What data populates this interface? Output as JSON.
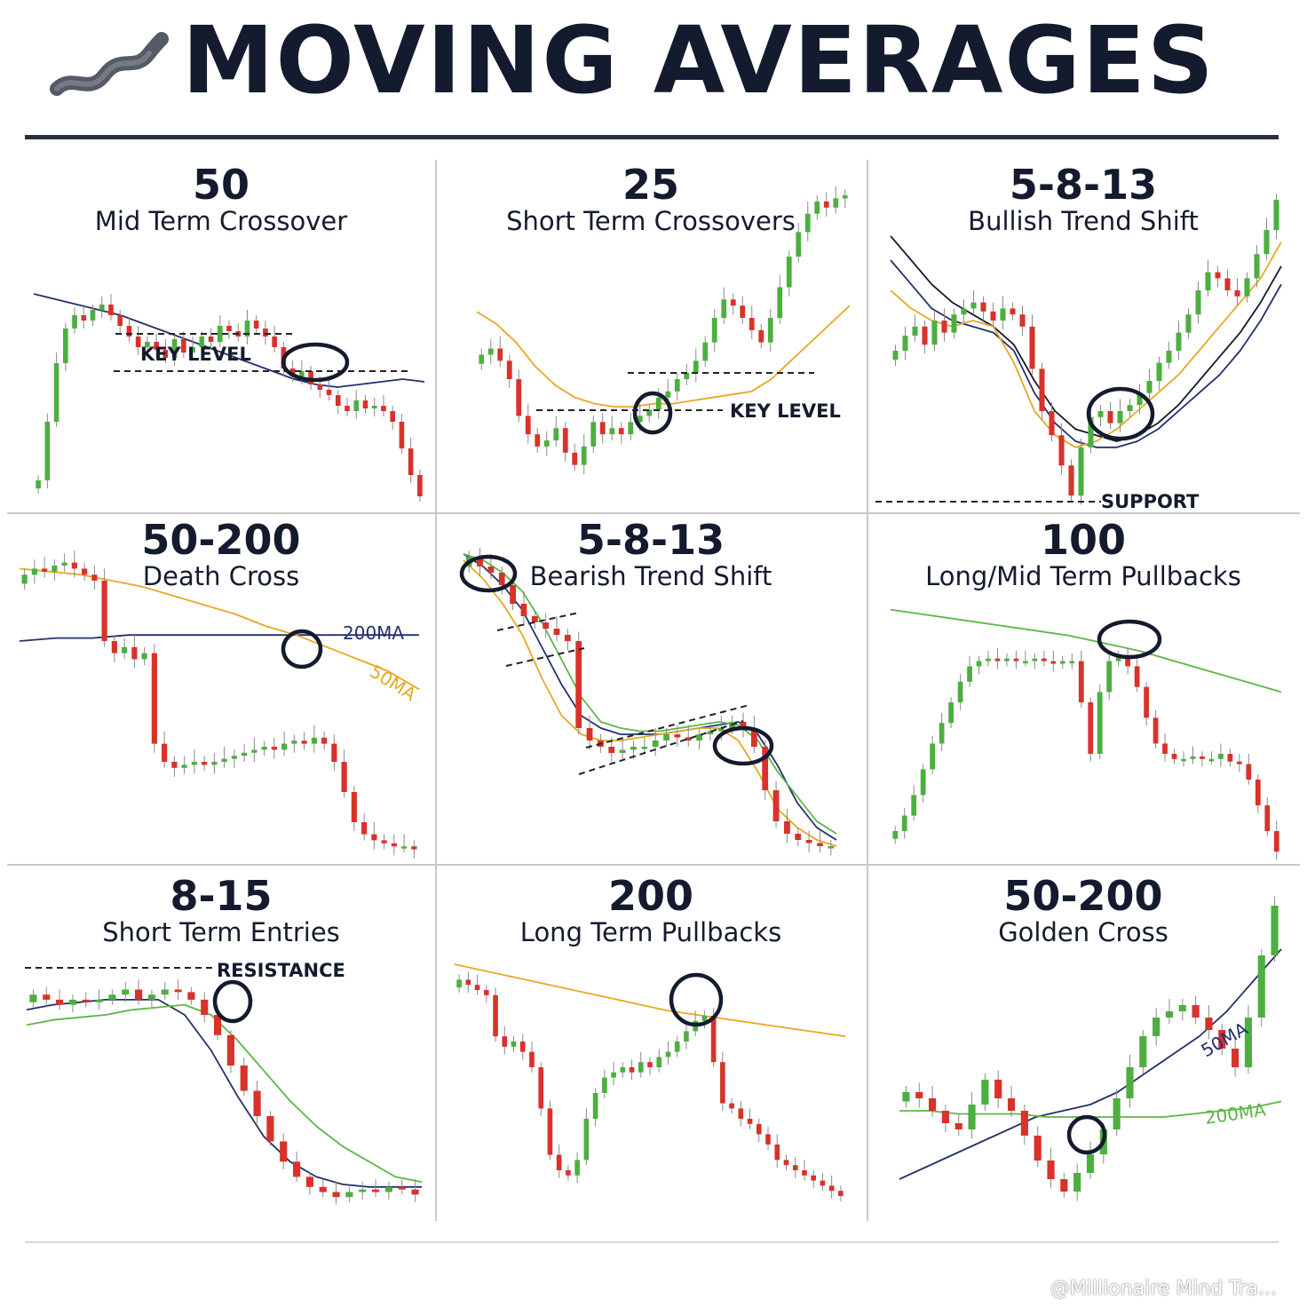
{
  "header": {
    "title": "MOVING AVERAGES",
    "logo_icon": "wave-icon"
  },
  "watermark": "@Millionaire Mind Tra...",
  "colors": {
    "bull": "#4caf3f",
    "bear": "#d8322a",
    "navy": "#23306b",
    "orange": "#e8a823",
    "green": "#5cb648",
    "ink": "#151b2e"
  },
  "chart_data": [
    {
      "type": "candlestick",
      "title": "50",
      "subtitle": "Mid Term Crossover",
      "moving_averages": [
        "navy"
      ],
      "annotations": [
        "KEY LEVEL"
      ],
      "highlight": "crossover",
      "ylim": [
        0,
        100
      ],
      "close": [
        8,
        30,
        52,
        65,
        70,
        68,
        72,
        74,
        70,
        66,
        62,
        58,
        60,
        57,
        54,
        61,
        56,
        58,
        62,
        60,
        66,
        64,
        62,
        68,
        65,
        62,
        58,
        50,
        47,
        49,
        44,
        42,
        40,
        36,
        34,
        38,
        35,
        36,
        34,
        30,
        20,
        10,
        2
      ],
      "ma_series": [
        {
          "color": "navy",
          "values": [
            78,
            76,
            74,
            72,
            70,
            67,
            64,
            61,
            58,
            55,
            52,
            49,
            46,
            44,
            43,
            44,
            45,
            46,
            45
          ]
        }
      ]
    },
    {
      "type": "candlestick",
      "title": "25",
      "subtitle": "Short Term Crossovers",
      "moving_averages": [
        "orange"
      ],
      "annotations": [
        "KEY LEVEL"
      ],
      "highlight": "crossover",
      "ylim": [
        0,
        100
      ],
      "close": [
        48,
        50,
        46,
        40,
        28,
        22,
        18,
        20,
        24,
        16,
        12,
        18,
        26,
        22,
        24,
        22,
        26,
        28,
        30,
        34,
        36,
        40,
        42,
        46,
        52,
        60,
        66,
        64,
        60,
        56,
        52,
        60,
        70,
        80,
        88,
        94,
        98,
        96,
        99,
        100
      ],
      "ma_series": [
        {
          "color": "orange",
          "values": [
            62,
            58,
            52,
            44,
            38,
            34,
            32,
            31,
            31,
            32,
            32,
            33,
            34,
            35,
            36,
            40,
            46,
            52,
            58,
            64
          ]
        }
      ]
    },
    {
      "type": "candlestick",
      "title": "5-8-13",
      "subtitle": "Bullish Trend Shift",
      "moving_averages": [
        "navy",
        "black",
        "orange"
      ],
      "annotations": [
        "SUPPORT"
      ],
      "highlight": "crossover",
      "ylim": [
        0,
        100
      ],
      "close": [
        50,
        55,
        58,
        52,
        60,
        56,
        62,
        64,
        66,
        63,
        60,
        64,
        62,
        58,
        44,
        30,
        22,
        12,
        2,
        18,
        28,
        30,
        26,
        30,
        32,
        36,
        40,
        46,
        50,
        56,
        62,
        70,
        76,
        74,
        70,
        68,
        74,
        82,
        90,
        100
      ],
      "ma_series": [
        {
          "color": "black",
          "values": [
            88,
            80,
            72,
            66,
            62,
            58,
            52,
            40,
            30,
            24,
            22,
            20,
            22,
            26,
            32,
            40,
            48,
            56,
            66,
            78
          ]
        },
        {
          "color": "navy",
          "values": [
            80,
            72,
            64,
            60,
            58,
            56,
            50,
            36,
            26,
            20,
            18,
            18,
            20,
            24,
            30,
            36,
            42,
            50,
            60,
            72
          ]
        },
        {
          "color": "orange",
          "values": [
            70,
            64,
            60,
            58,
            60,
            58,
            46,
            30,
            22,
            18,
            20,
            24,
            30,
            36,
            42,
            50,
            58,
            66,
            74,
            86
          ]
        }
      ]
    },
    {
      "type": "candlestick",
      "title": "50-200",
      "subtitle": "Death Cross",
      "moving_averages": [
        "200MA",
        "50MA"
      ],
      "annotations": [
        "200MA",
        "50MA"
      ],
      "highlight": "death-cross",
      "ylim": [
        0,
        100
      ],
      "close": [
        92,
        94,
        93,
        95,
        96,
        94,
        92,
        90,
        70,
        66,
        68,
        64,
        66,
        36,
        30,
        28,
        29,
        30,
        29,
        30,
        31,
        32,
        33,
        34,
        35,
        34,
        36,
        37,
        36,
        38,
        36,
        30,
        20,
        10,
        6,
        4,
        3,
        2,
        2,
        1
      ],
      "ma_series": [
        {
          "color": "navy",
          "values": [
            70,
            71,
            71,
            72,
            72,
            72,
            72,
            72,
            72,
            72,
            72,
            72
          ]
        },
        {
          "color": "orange",
          "values": [
            94,
            93,
            92,
            90,
            88,
            85,
            82,
            79,
            75,
            72,
            68,
            64,
            60,
            54
          ]
        }
      ]
    },
    {
      "type": "candlestick",
      "title": "5-8-13",
      "subtitle": "Bearish Trend Shift",
      "moving_averages": [
        "navy",
        "orange",
        "green"
      ],
      "annotations": [
        "trendlines"
      ],
      "highlight": "crossover",
      "ylim": [
        0,
        100
      ],
      "close": [
        95,
        92,
        90,
        86,
        80,
        76,
        74,
        72,
        70,
        68,
        40,
        36,
        34,
        32,
        33,
        34,
        34,
        36,
        38,
        37,
        36,
        38,
        39,
        40,
        42,
        40,
        34,
        20,
        10,
        6,
        4,
        3,
        2,
        2
      ],
      "ma_series": [
        {
          "color": "navy",
          "values": [
            96,
            92,
            86,
            78,
            66,
            54,
            44,
            40,
            38,
            38,
            38,
            39,
            40,
            41,
            42,
            38,
            28,
            16,
            8,
            4
          ]
        },
        {
          "color": "orange",
          "values": [
            94,
            88,
            80,
            70,
            56,
            44,
            38,
            36,
            36,
            37,
            38,
            39,
            40,
            40,
            36,
            26,
            14,
            8,
            4,
            2
          ]
        },
        {
          "color": "green",
          "values": [
            96,
            94,
            90,
            84,
            74,
            62,
            50,
            42,
            40,
            39,
            39,
            40,
            41,
            42,
            41,
            36,
            26,
            18,
            10,
            6
          ]
        }
      ]
    },
    {
      "type": "candlestick",
      "title": "100",
      "subtitle": "Long/Mid Term Pullbacks",
      "moving_averages": [
        "green"
      ],
      "annotations": [],
      "highlight": "pullback",
      "ylim": [
        0,
        100
      ],
      "close": [
        10,
        16,
        24,
        34,
        44,
        52,
        60,
        68,
        74,
        76,
        77,
        76,
        77,
        76,
        76,
        77,
        76,
        75,
        76,
        76,
        60,
        40,
        64,
        76,
        78,
        74,
        66,
        54,
        44,
        40,
        38,
        38,
        39,
        38,
        38,
        40,
        37,
        36,
        30,
        20,
        10,
        2
      ],
      "ma_series": [
        {
          "color": "green",
          "values": [
            96,
            94,
            92,
            90,
            88,
            86,
            83,
            80,
            76,
            72,
            68,
            64
          ]
        }
      ]
    },
    {
      "type": "candlestick",
      "title": "8-15",
      "subtitle": "Short Term Entries",
      "moving_averages": [
        "navy",
        "green"
      ],
      "annotations": [
        "RESISTANCE"
      ],
      "highlight": "crossover",
      "ylim": [
        0,
        100
      ],
      "close": [
        88,
        86,
        84,
        86,
        85,
        86,
        88,
        90,
        86,
        88,
        90,
        89,
        86,
        80,
        72,
        60,
        50,
        40,
        30,
        22,
        16,
        12,
        10,
        8,
        10,
        11,
        10,
        12,
        11,
        9
      ],
      "ma_series": [
        {
          "color": "navy",
          "values": [
            82,
            84,
            85,
            86,
            86,
            86,
            80,
            66,
            48,
            32,
            22,
            16,
            13,
            12,
            12,
            12
          ]
        },
        {
          "color": "green",
          "values": [
            76,
            78,
            79,
            80,
            82,
            83,
            84,
            80,
            70,
            58,
            46,
            36,
            28,
            22,
            16,
            14
          ]
        }
      ]
    },
    {
      "type": "candlestick",
      "title": "200",
      "subtitle": "Long Term Pullbacks",
      "moving_averages": [
        "orange"
      ],
      "annotations": [],
      "highlight": "pullback",
      "ylim": [
        0,
        100
      ],
      "close": [
        94,
        92,
        90,
        88,
        72,
        68,
        70,
        66,
        60,
        44,
        26,
        20,
        18,
        24,
        40,
        50,
        56,
        58,
        60,
        58,
        62,
        60,
        64,
        66,
        70,
        74,
        78,
        80,
        62,
        46,
        44,
        40,
        38,
        34,
        30,
        24,
        22,
        20,
        18,
        16,
        14,
        12,
        10
      ],
      "ma_series": [
        {
          "color": "orange",
          "values": [
            100,
            97,
            94,
            91,
            88,
            85,
            82,
            80,
            78,
            76,
            74,
            72
          ]
        }
      ]
    },
    {
      "type": "candlestick",
      "title": "50-200",
      "subtitle": "Golden Cross",
      "moving_averages": [
        "50MA",
        "200MA"
      ],
      "annotations": [
        "50MA",
        "200MA"
      ],
      "highlight": "golden-cross",
      "ylim": [
        0,
        100
      ],
      "close": [
        36,
        34,
        30,
        26,
        24,
        32,
        40,
        34,
        30,
        22,
        14,
        8,
        4,
        10,
        16,
        24,
        34,
        44,
        54,
        60,
        62,
        64,
        60,
        56,
        50,
        44,
        60,
        80,
        96
      ],
      "ma_series": [
        {
          "color": "navy",
          "values": [
            8,
            12,
            16,
            20,
            24,
            28,
            30,
            32,
            36,
            42,
            48,
            54,
            62,
            72,
            82
          ]
        },
        {
          "color": "green",
          "values": [
            30,
            30,
            29,
            29,
            29,
            28,
            28,
            28,
            28,
            28,
            29,
            30,
            31,
            33
          ]
        }
      ]
    }
  ]
}
